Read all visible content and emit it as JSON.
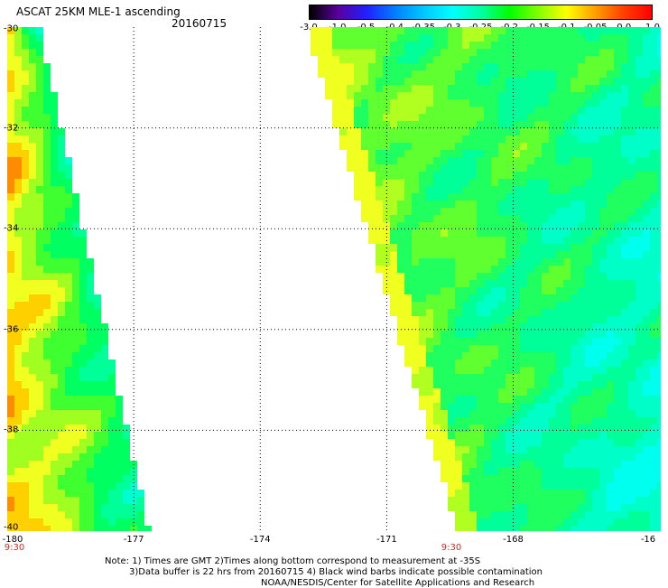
{
  "header": {
    "title": "ASCAT 25KM MLE-1 ascending",
    "date": "20160715"
  },
  "colorbar": {
    "labels": [
      "-3.0",
      "-1.0",
      "-0.5",
      "-0.4",
      "-0.35",
      "-0.3",
      "-0.25",
      "-0.2",
      "-0.15",
      "-0.1",
      "-0.05",
      "0.0",
      "1.0"
    ],
    "colors": [
      "#000000",
      "#5a00a0",
      "#2020ff",
      "#0080ff",
      "#00c8ff",
      "#00ffff",
      "#00ffa0",
      "#00ff00",
      "#80ff00",
      "#ffff00",
      "#ffa000",
      "#ff4000",
      "#ff0000"
    ]
  },
  "map": {
    "lat_labels": [
      "-30",
      "-32",
      "-34",
      "-36",
      "-38",
      "-40"
    ],
    "lon_labels": [
      "-180",
      "-177",
      "-174",
      "-171",
      "-168",
      "-16"
    ],
    "pass_times": [
      "9:30",
      "9:30"
    ],
    "lat_range": [
      -40,
      -30
    ],
    "lon_range": [
      -180,
      -164.5
    ],
    "swaths": [
      {
        "name": "west",
        "lat_top": -30,
        "lat_bottom": -40,
        "lon_west": -180,
        "lon_east_top": -179.3,
        "lon_east_bottom": -176.7
      },
      {
        "name": "east",
        "lat_top": -30,
        "lat_bottom": -40,
        "lon_west_top": -172.8,
        "lon_west_bottom": -169.2,
        "lon_east": -164.5
      }
    ]
  },
  "footer": {
    "line1": "Note: 1) Times are GMT 2)Times along bottom correspond to measurement at -35S",
    "line2": "3)Data buffer is 22 hrs from 20160715 4) Black wind barbs indicate possible contamination",
    "line3": "NOAA/NESDIS/Center for Satellite Applications and Research"
  }
}
